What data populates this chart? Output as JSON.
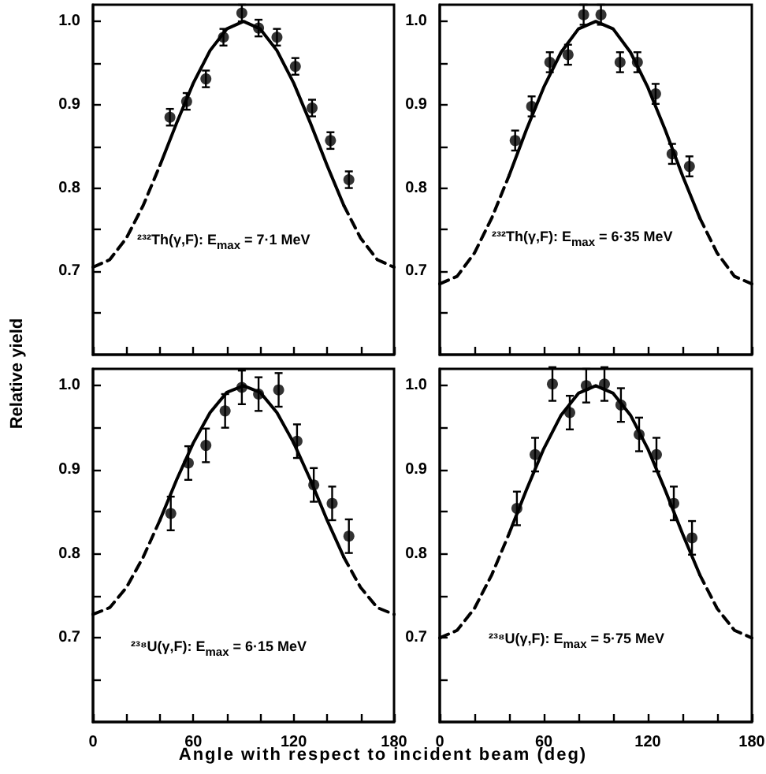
{
  "chart_data": [
    {
      "type": "scatter",
      "ylabel": "Relative yield",
      "annotations": [
        "²³²Th(γ,F): E$_{max}$ = 7·1 MeV"
      ],
      "xlim": [
        0,
        180
      ],
      "ylim": [
        0.6,
        1.02
      ],
      "tick_labels": "y",
      "grid": false,
      "xticks": [
        0,
        20,
        40,
        60,
        80,
        100,
        120,
        140,
        160,
        180
      ],
      "yticks": [
        {
          "value": 0.65,
          "label": null
        },
        {
          "value": 0.7,
          "label": "0.7"
        },
        {
          "value": 0.75,
          "label": null
        },
        {
          "value": 0.8,
          "label": "0.8"
        },
        {
          "value": 0.85,
          "label": null
        },
        {
          "value": 0.9,
          "label": "0.9"
        },
        {
          "value": 0.95,
          "label": null
        },
        {
          "value": 1.0,
          "label": "1.0"
        }
      ],
      "series": [
        {
          "color": "#000000",
          "marker": "circle",
          "x": [
            46,
            56,
            67.5,
            78,
            89,
            99,
            110,
            121,
            131,
            142,
            153
          ],
          "values": [
            0.885,
            0.904,
            0.931,
            0.981,
            1.01,
            0.992,
            0.981,
            0.946,
            0.896,
            0.857,
            0.81
          ],
          "errors": [
            0.01,
            0.01,
            0.01,
            0.01,
            0.01,
            0.01,
            0.01,
            0.01,
            0.01,
            0.01,
            0.01
          ]
        },
        {
          "type": "line",
          "color": "#000000",
          "marker": "none",
          "line_style": "solid",
          "x": [
            40,
            50,
            60,
            70,
            80,
            90,
            100,
            110,
            120,
            130,
            140,
            150
          ],
          "values": [
            0.827,
            0.878,
            0.926,
            0.965,
            0.991,
            1.0,
            0.991,
            0.965,
            0.926,
            0.878,
            0.827,
            0.779
          ]
        },
        {
          "type": "line",
          "color": "#000000",
          "marker": "none",
          "line_style": "dashed",
          "x": [
            0,
            10,
            20,
            30,
            40,
            95,
            150,
            160,
            170,
            180
          ],
          "values": [
            0.705,
            0.714,
            0.74,
            0.779,
            0.827,
            null,
            0.779,
            0.74,
            0.714,
            0.705
          ]
        }
      ]
    },
    {
      "type": "scatter",
      "annotations": [
        "²³²Th(γ,F): E$_{max}$ = 6·35 MeV"
      ],
      "xlim": [
        0,
        180
      ],
      "ylim": [
        0.6,
        1.02
      ],
      "tick_labels": "y",
      "grid": false,
      "xticks": [
        0,
        20,
        40,
        60,
        80,
        100,
        120,
        140,
        160,
        180
      ],
      "yticks": [
        {
          "value": 0.65,
          "label": null
        },
        {
          "value": 0.7,
          "label": "0.7"
        },
        {
          "value": 0.75,
          "label": null
        },
        {
          "value": 0.8,
          "label": "0.8"
        },
        {
          "value": 0.85,
          "label": null
        },
        {
          "value": 0.9,
          "label": "0.9"
        },
        {
          "value": 0.95,
          "label": null
        },
        {
          "value": 1.0,
          "label": "1.0"
        }
      ],
      "series": [
        {
          "color": "#000000",
          "marker": "circle",
          "x": [
            43.5,
            53,
            63.5,
            74,
            83,
            93,
            104,
            114,
            124.5,
            134,
            144
          ],
          "values": [
            0.857,
            0.898,
            0.951,
            0.96,
            1.008,
            1.008,
            0.951,
            0.951,
            0.913,
            0.841,
            0.826
          ],
          "errors": [
            0.012,
            0.012,
            0.012,
            0.012,
            0.012,
            0.012,
            0.012,
            0.012,
            0.012,
            0.012,
            0.012
          ]
        },
        {
          "type": "line",
          "color": "#000000",
          "marker": "none",
          "line_style": "solid",
          "x": [
            40,
            50,
            60,
            70,
            80,
            90,
            100,
            110,
            120,
            130,
            140,
            150
          ],
          "values": [
            0.815,
            0.87,
            0.921,
            0.963,
            0.991,
            1.0,
            0.991,
            0.963,
            0.921,
            0.87,
            0.815,
            0.764
          ]
        },
        {
          "type": "line",
          "color": "#000000",
          "marker": "none",
          "line_style": "dashed",
          "x": [
            0,
            10,
            20,
            30,
            40,
            95,
            150,
            160,
            170,
            180
          ],
          "values": [
            0.685,
            0.694,
            0.722,
            0.764,
            0.815,
            null,
            0.764,
            0.722,
            0.694,
            0.685
          ]
        }
      ]
    },
    {
      "type": "scatter",
      "xlabel": "Angle with respect to incident beam (deg)",
      "annotations": [
        "²³⁸U(γ,F): E$_{max}$ = 6·15 MeV"
      ],
      "xlim": [
        0,
        180
      ],
      "ylim": [
        0.6,
        1.02
      ],
      "grid": false,
      "xticks": [
        {
          "value": 0,
          "label": "0"
        },
        {
          "value": 20,
          "label": null
        },
        {
          "value": 40,
          "label": null
        },
        {
          "value": 60,
          "label": "60"
        },
        {
          "value": 80,
          "label": null
        },
        {
          "value": 100,
          "label": null
        },
        {
          "value": 120,
          "label": "120"
        },
        {
          "value": 140,
          "label": null
        },
        {
          "value": 160,
          "label": null
        },
        {
          "value": 180,
          "label": "180"
        }
      ],
      "yticks": [
        {
          "value": 0.65,
          "label": null
        },
        {
          "value": 0.7,
          "label": "0.7"
        },
        {
          "value": 0.75,
          "label": null
        },
        {
          "value": 0.8,
          "label": "0.8"
        },
        {
          "value": 0.85,
          "label": null
        },
        {
          "value": 0.9,
          "label": "0.9"
        },
        {
          "value": 0.95,
          "label": null
        },
        {
          "value": 1.0,
          "label": "1.0"
        }
      ],
      "series": [
        {
          "color": "#000000",
          "marker": "circle",
          "x": [
            46.5,
            57,
            67.5,
            79,
            89,
            99,
            111,
            122,
            132,
            143,
            153
          ],
          "values": [
            0.848,
            0.908,
            0.929,
            0.97,
            0.998,
            0.99,
            0.995,
            0.934,
            0.882,
            0.86,
            0.821
          ],
          "errors": [
            0.02,
            0.02,
            0.02,
            0.02,
            0.02,
            0.02,
            0.02,
            0.02,
            0.02,
            0.02,
            0.02
          ]
        },
        {
          "type": "line",
          "color": "#000000",
          "marker": "none",
          "line_style": "solid",
          "x": [
            40,
            50,
            60,
            70,
            80,
            90,
            100,
            110,
            120,
            130,
            140,
            150
          ],
          "values": [
            0.84,
            0.888,
            0.932,
            0.968,
            0.992,
            1.0,
            0.992,
            0.968,
            0.932,
            0.888,
            0.84,
            0.796
          ]
        },
        {
          "type": "line",
          "color": "#000000",
          "marker": "none",
          "line_style": "dashed",
          "x": [
            0,
            10,
            20,
            30,
            40,
            95,
            150,
            160,
            170,
            180
          ],
          "values": [
            0.728,
            0.736,
            0.76,
            0.796,
            0.84,
            null,
            0.796,
            0.76,
            0.736,
            0.728
          ]
        }
      ]
    },
    {
      "type": "scatter",
      "annotations": [
        "²³⁸U(γ,F): E$_{max}$ = 5·75 MeV"
      ],
      "xlim": [
        0,
        180
      ],
      "ylim": [
        0.6,
        1.02
      ],
      "grid": false,
      "xticks": [
        {
          "value": 0,
          "label": "0"
        },
        {
          "value": 20,
          "label": null
        },
        {
          "value": 40,
          "label": null
        },
        {
          "value": 60,
          "label": "60"
        },
        {
          "value": 80,
          "label": null
        },
        {
          "value": 100,
          "label": null
        },
        {
          "value": 120,
          "label": "120"
        },
        {
          "value": 140,
          "label": null
        },
        {
          "value": 160,
          "label": null
        },
        {
          "value": 180,
          "label": "180"
        }
      ],
      "yticks": [
        {
          "value": 0.65,
          "label": null
        },
        {
          "value": 0.7,
          "label": "0.7"
        },
        {
          "value": 0.75,
          "label": null
        },
        {
          "value": 0.8,
          "label": "0.8"
        },
        {
          "value": 0.85,
          "label": null
        },
        {
          "value": 0.9,
          "label": "0.9"
        },
        {
          "value": 0.95,
          "label": null
        },
        {
          "value": 1.0,
          "label": "1.0"
        }
      ],
      "series": [
        {
          "color": "#000000",
          "marker": "circle",
          "x": [
            44.5,
            55,
            65,
            75,
            84.5,
            95,
            104.5,
            115,
            125,
            135,
            145.5
          ],
          "values": [
            0.854,
            0.918,
            1.002,
            0.968,
            1.0,
            1.002,
            0.977,
            0.942,
            0.918,
            0.86,
            0.819
          ],
          "errors": [
            0.02,
            0.02,
            0.02,
            0.02,
            0.02,
            0.02,
            0.02,
            0.02,
            0.02,
            0.02,
            0.02
          ]
        },
        {
          "type": "line",
          "color": "#000000",
          "marker": "none",
          "line_style": "solid",
          "x": [
            40,
            50,
            60,
            70,
            80,
            90,
            100,
            110,
            120,
            130,
            140,
            150
          ],
          "values": [
            0.824,
            0.876,
            0.925,
            0.965,
            0.991,
            1.0,
            0.991,
            0.965,
            0.925,
            0.876,
            0.824,
            0.775
          ]
        },
        {
          "type": "line",
          "color": "#000000",
          "marker": "none",
          "line_style": "dashed",
          "x": [
            0,
            10,
            20,
            30,
            40,
            95,
            150,
            160,
            170,
            180
          ],
          "values": [
            0.7,
            0.709,
            0.735,
            0.775,
            0.824,
            null,
            0.775,
            0.735,
            0.709,
            0.7
          ]
        }
      ]
    }
  ]
}
